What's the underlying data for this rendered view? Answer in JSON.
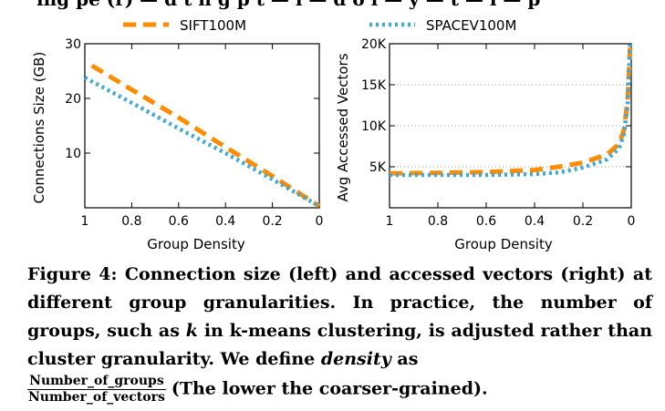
{
  "colors": {
    "sift": "#ff8c00",
    "spacev": "#3ea8d6"
  },
  "legend": {
    "sift": "SIFT100M",
    "spacev": "SPACEV100M"
  },
  "partial_top_text": "ing pe (r) — d t h g p t —  l — d o  l — y   — t — l — p",
  "caption": {
    "fig_label": "Figure 4:",
    "part1": "Connection size (left) and accessed vectors (right) at different group granularities. In practice, the number of groups, such as",
    "k": "k",
    "part2": "in k-means clustering, is adjusted rather than cluster granularity. We define",
    "density_word": "density",
    "as": "as",
    "frac_num": "Number_of_groups",
    "frac_den": "Number_of_vectors",
    "tail": "(The lower the coarser-grained)."
  },
  "chart_data": [
    {
      "type": "line",
      "title": "",
      "xlabel": "Group Density",
      "ylabel": "Connections Size (GB)",
      "xlim": [
        1,
        0
      ],
      "ylim": [
        0,
        30
      ],
      "xticks": [
        "1",
        "0.8",
        "0.6",
        "0.4",
        "0.2",
        "0"
      ],
      "xtick_values": [
        1,
        0.8,
        0.6,
        0.4,
        0.2,
        0
      ],
      "yticks": [
        "10",
        "20",
        "30"
      ],
      "ytick_values": [
        10,
        20,
        30
      ],
      "series": [
        {
          "name": "SIFT100M",
          "style": "dashed",
          "x": [
            0.97,
            0.8,
            0.6,
            0.4,
            0.2,
            0.0
          ],
          "y": [
            26,
            21.6,
            16.5,
            11.1,
            5.8,
            0.3
          ]
        },
        {
          "name": "SPACEV100M",
          "style": "dotted",
          "x": [
            1.0,
            0.8,
            0.6,
            0.4,
            0.2,
            0.0
          ],
          "y": [
            23.8,
            19.2,
            14.5,
            10.0,
            5.2,
            0.3
          ]
        }
      ]
    },
    {
      "type": "line",
      "title": "",
      "xlabel": "Group Density",
      "ylabel": "Avg Accessed Vectors",
      "xlim": [
        1,
        0
      ],
      "ylim": [
        0,
        20000
      ],
      "xticks": [
        "1",
        "0.8",
        "0.6",
        "0.4",
        "0.2",
        "0"
      ],
      "xtick_values": [
        1,
        0.8,
        0.6,
        0.4,
        0.2,
        0
      ],
      "yticks": [
        "5K",
        "10K",
        "15K",
        "20K"
      ],
      "ytick_values": [
        5000,
        10000,
        15000,
        20000
      ],
      "grid": "horizontal-dotted",
      "series": [
        {
          "name": "SIFT100M",
          "style": "dashed",
          "x": [
            1.0,
            0.8,
            0.6,
            0.4,
            0.3,
            0.2,
            0.1,
            0.05,
            0.03,
            0.015,
            0.005
          ],
          "y": [
            4200,
            4250,
            4350,
            4600,
            5000,
            5500,
            6500,
            7800,
            9500,
            13000,
            19500
          ]
        },
        {
          "name": "SPACEV100M",
          "style": "dotted",
          "x": [
            1.0,
            0.8,
            0.6,
            0.4,
            0.3,
            0.2,
            0.1,
            0.05,
            0.03,
            0.015,
            0.005
          ],
          "y": [
            4000,
            4000,
            4000,
            4100,
            4300,
            4900,
            5900,
            7300,
            9000,
            12500,
            20000
          ]
        }
      ]
    }
  ]
}
